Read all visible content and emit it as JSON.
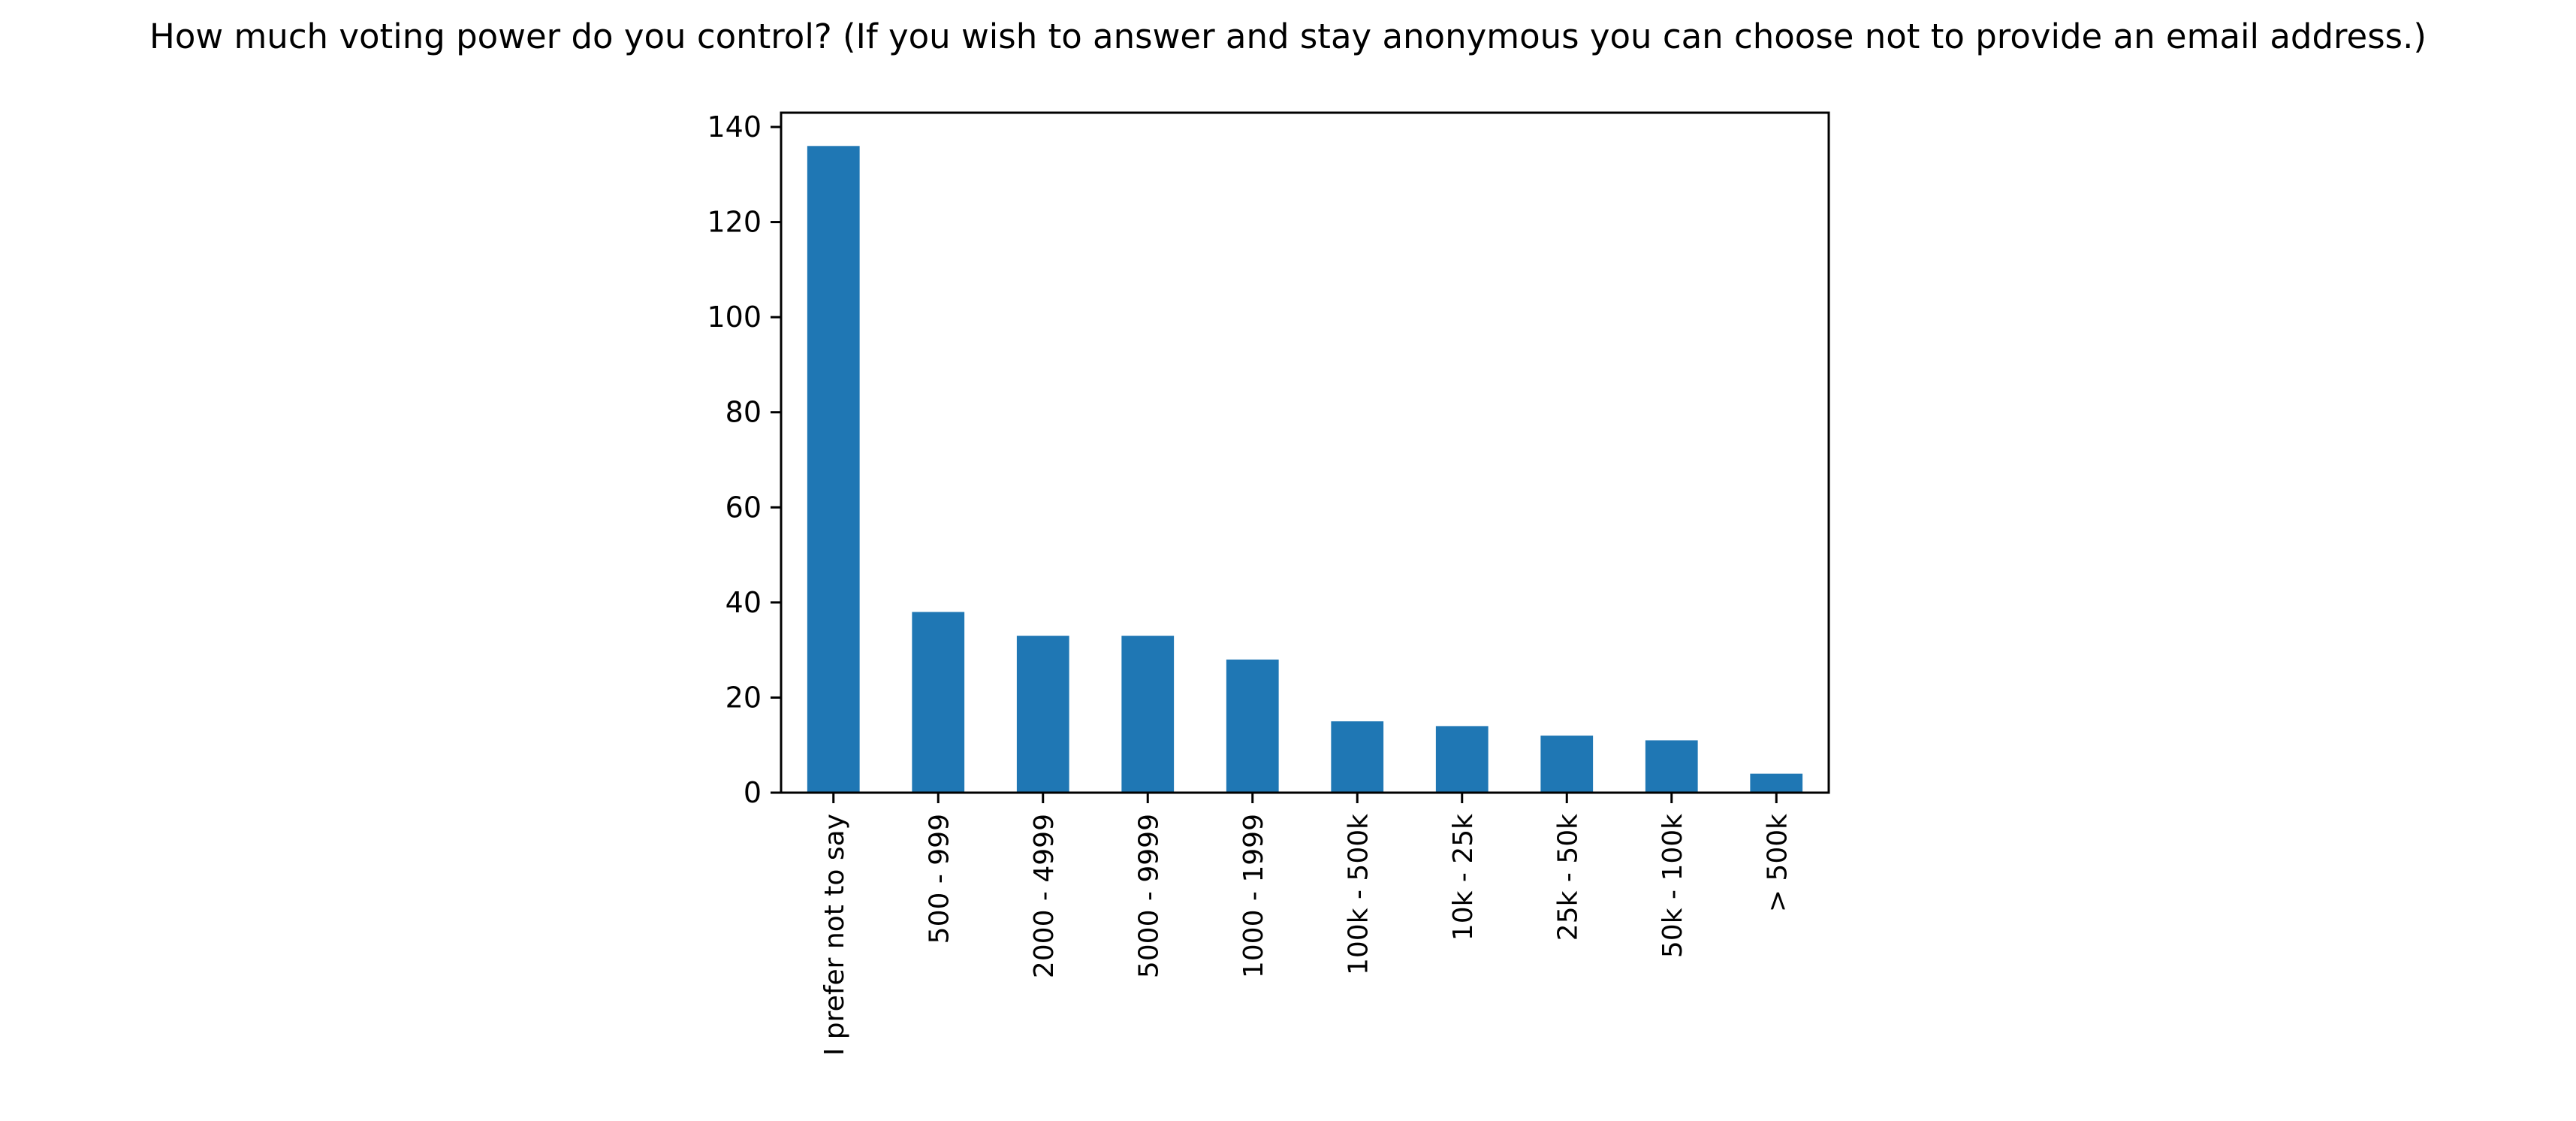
{
  "chart_data": {
    "type": "bar",
    "title": "How much voting power do you control? (If you wish to answer and stay anonymous you can choose not to provide an email address.)",
    "xlabel": "",
    "ylabel": "",
    "categories": [
      "I prefer not to say",
      "500 - 999",
      "2000 - 4999",
      "5000 - 9999",
      "1000 - 1999",
      "100k - 500k",
      "10k - 25k",
      "25k - 50k",
      "50k - 100k",
      "> 500k"
    ],
    "values": [
      136,
      38,
      33,
      33,
      28,
      15,
      14,
      12,
      11,
      4
    ],
    "ylim": [
      0,
      143
    ],
    "yticks": [
      0,
      20,
      40,
      60,
      80,
      100,
      120,
      140
    ],
    "grid": false,
    "legend": "none",
    "bar_color": "#1f77b4"
  }
}
